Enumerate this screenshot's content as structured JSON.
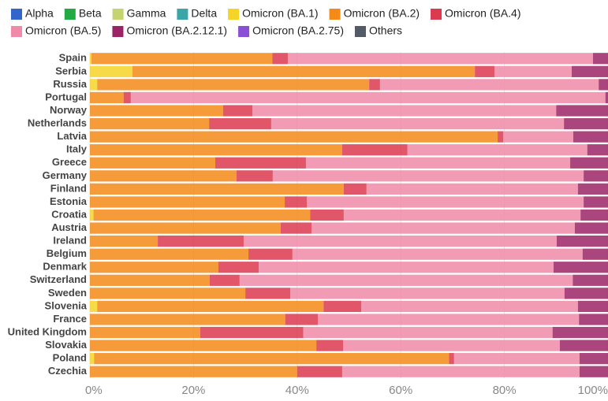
{
  "chart_data": {
    "type": "stacked_barh",
    "categories": [
      "Spain",
      "Serbia",
      "Russia",
      "Portugal",
      "Norway",
      "Netherlands",
      "Latvia",
      "Italy",
      "Greece",
      "Germany",
      "Finland",
      "Estonia",
      "Croatia",
      "Austria",
      "Ireland",
      "Belgium",
      "Denmark",
      "Switzerland",
      "Sweden",
      "Slovenia",
      "France",
      "United Kingdom",
      "Slovakia",
      "Poland",
      "Czechia"
    ],
    "series": [
      {
        "name": "Alpha",
        "color": "#3366cc",
        "values": [
          0,
          0,
          0,
          0,
          0,
          0,
          0,
          0,
          0,
          0,
          0,
          0,
          0,
          0,
          0,
          0,
          0,
          0,
          0,
          0,
          0,
          0,
          0,
          0,
          0
        ]
      },
      {
        "name": "Beta",
        "color": "#22aa44",
        "values": [
          0,
          0,
          0,
          0,
          0,
          0,
          0,
          0,
          0,
          0,
          0,
          0,
          0,
          0,
          0,
          0,
          0,
          0,
          0,
          0,
          0,
          0,
          0,
          0,
          0
        ]
      },
      {
        "name": "Gamma",
        "color": "#c5d46e",
        "values": [
          0,
          0,
          0,
          0,
          0,
          0,
          0,
          0,
          0,
          0,
          0,
          0,
          0,
          0,
          0,
          0,
          0,
          0,
          0,
          0,
          0,
          0,
          0,
          0,
          0
        ]
      },
      {
        "name": "Delta",
        "color": "#3aa6a8",
        "values": [
          0,
          0,
          0,
          0,
          0,
          0,
          0,
          0,
          0,
          0,
          0,
          0,
          0,
          0,
          0,
          0,
          0,
          0,
          0,
          0,
          0,
          0,
          0,
          0,
          0
        ]
      },
      {
        "name": "Omicron (BA.1)",
        "color": "#f5d327",
        "values": [
          0.3,
          8.2,
          1.4,
          0,
          0,
          0,
          0,
          0,
          0,
          0,
          0,
          0,
          0.7,
          0,
          0,
          0,
          0,
          0,
          0,
          1.4,
          0,
          0,
          0,
          0.8,
          0
        ]
      },
      {
        "name": "Omicron (BA.2)",
        "color": "#f58a18",
        "values": [
          34.9,
          66.1,
          52.5,
          6.5,
          25.7,
          23.0,
          78.7,
          48.7,
          24.2,
          28.3,
          49.0,
          37.6,
          41.8,
          36.8,
          13.1,
          30.6,
          24.8,
          23.1,
          30.0,
          43.7,
          37.7,
          21.3,
          43.7,
          68.5,
          40.0
        ]
      },
      {
        "name": "Omicron (BA.4)",
        "color": "#dc3a4f",
        "values": [
          3.0,
          3.8,
          2.1,
          1.4,
          5.7,
          12.0,
          1.1,
          12.6,
          17.5,
          7.0,
          4.4,
          4.3,
          6.5,
          6.0,
          16.6,
          8.5,
          7.8,
          5.8,
          8.7,
          7.3,
          6.3,
          19.9,
          5.2,
          1.0,
          8.7
        ]
      },
      {
        "name": "Omicron (BA.5)",
        "color": "#f08aa8",
        "values": [
          58.9,
          14.9,
          42.2,
          91.6,
          58.6,
          56.5,
          13.5,
          34.7,
          51.0,
          60.0,
          40.8,
          53.4,
          45.7,
          50.8,
          60.4,
          56.0,
          56.9,
          64.3,
          52.9,
          41.8,
          50.4,
          48.1,
          41.8,
          24.2,
          45.8
        ]
      },
      {
        "name": "Omicron (BA.2.12.1)",
        "color": "#9c2466",
        "values": [
          2.9,
          7.0,
          1.8,
          0.5,
          10.0,
          8.5,
          6.7,
          4.0,
          7.3,
          4.7,
          5.8,
          4.7,
          5.3,
          6.4,
          9.9,
          4.9,
          10.5,
          6.8,
          8.4,
          5.8,
          5.6,
          10.7,
          9.3,
          5.5,
          5.5
        ]
      },
      {
        "name": "Omicron (BA.2.75)",
        "color": "#8b4fd6",
        "values": [
          0,
          0,
          0,
          0,
          0,
          0,
          0,
          0,
          0,
          0,
          0,
          0,
          0,
          0,
          0,
          0,
          0,
          0,
          0,
          0,
          0,
          0,
          0,
          0,
          0
        ]
      },
      {
        "name": "Others",
        "color": "#555b66",
        "values": [
          0,
          0,
          0,
          0,
          0,
          0,
          0,
          0,
          0,
          0,
          0,
          0,
          0,
          0,
          0,
          0,
          0,
          0,
          0,
          0,
          0,
          0,
          0,
          0,
          0
        ]
      }
    ],
    "xlim": [
      0,
      100
    ],
    "xticks": [
      {
        "value": 0,
        "label": "0%"
      },
      {
        "value": 20,
        "label": "20%"
      },
      {
        "value": 40,
        "label": "40%"
      },
      {
        "value": 60,
        "label": "60%"
      },
      {
        "value": 80,
        "label": "80%"
      },
      {
        "value": 100,
        "label": "100%"
      }
    ],
    "grid": true
  }
}
